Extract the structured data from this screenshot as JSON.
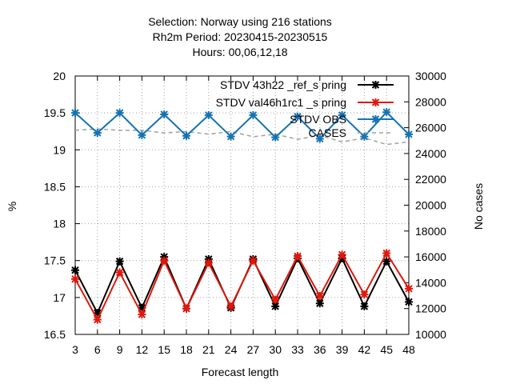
{
  "chart_data": {
    "type": "line",
    "title_lines": [
      "Selection: Norway using   216 stations",
      "Rh2m   Period: 20230415-20230515",
      "Hours:  00,06,12,18"
    ],
    "xlabel": "Forecast length",
    "ylabel": "%",
    "y2label": "No cases",
    "x": [
      3,
      6,
      9,
      12,
      15,
      18,
      21,
      24,
      27,
      30,
      33,
      36,
      39,
      42,
      45,
      48
    ],
    "xlim": [
      3,
      48
    ],
    "ylim": [
      16.5,
      20
    ],
    "y2lim": [
      10000,
      30000
    ],
    "yticks": [
      "16.5",
      "17",
      "17.5",
      "18",
      "18.5",
      "19",
      "19.5",
      "20"
    ],
    "y2ticks": [
      "10000",
      "12000",
      "14000",
      "16000",
      "18000",
      "20000",
      "22000",
      "24000",
      "26000",
      "28000",
      "30000"
    ],
    "grid": true,
    "legend_position": "top-right",
    "series": [
      {
        "name": "STDV 43h22 ref spring",
        "legend_label": "STDV 43h22 _ref_s pring",
        "color": "#000000",
        "marker": "x",
        "axis": "left",
        "values": [
          17.37,
          16.79,
          17.49,
          16.86,
          17.55,
          16.85,
          17.52,
          16.86,
          17.52,
          16.88,
          17.53,
          16.92,
          17.53,
          16.88,
          17.49,
          16.94
        ]
      },
      {
        "name": "STDV val46h1rc1 spring",
        "legend_label": "STDV val46h1rc1 _s pring",
        "color": "#e0180c",
        "marker": "x",
        "axis": "left",
        "values": [
          17.25,
          16.7,
          17.34,
          16.77,
          17.5,
          16.85,
          17.47,
          16.88,
          17.5,
          16.97,
          17.56,
          17.02,
          17.58,
          17.04,
          17.6,
          17.12
        ]
      },
      {
        "name": "STDV OBS",
        "legend_label": "STDV OBS",
        "color": "#1473b4",
        "marker": "x",
        "axis": "left",
        "values": [
          19.5,
          19.23,
          19.5,
          19.2,
          19.48,
          19.19,
          19.47,
          19.18,
          19.47,
          19.17,
          19.45,
          19.15,
          19.47,
          19.18,
          19.51,
          19.21
        ]
      },
      {
        "name": "CASES",
        "legend_label": "CASES",
        "color": "#a0a0a0",
        "dashed": true,
        "axis": "right",
        "values": [
          25800,
          25900,
          25800,
          25800,
          25600,
          25700,
          25500,
          25700,
          25300,
          25500,
          25100,
          25400,
          24900,
          25200,
          24700,
          24900
        ]
      }
    ]
  }
}
